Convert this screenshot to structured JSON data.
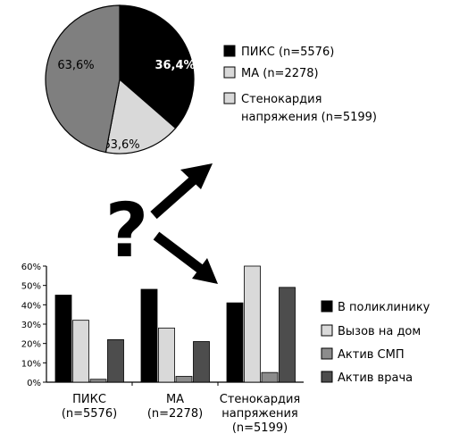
{
  "chart_data": [
    {
      "type": "pie",
      "slices": [
        {
          "label": "36,4%",
          "value": 36.4,
          "color": "#000000",
          "label_color": "#ffffff"
        },
        {
          "label": "63,6%",
          "value": 16.6,
          "color": "#d9d9d9",
          "label_color": "#000000"
        },
        {
          "label": "63,6%",
          "value": 47.0,
          "color": "#7f7f7f",
          "label_color": "#000000"
        }
      ],
      "legend": [
        {
          "label": "ПИКС (n=5576)",
          "color": "#000000"
        },
        {
          "label": "МА (n=2278)",
          "color": "#d9d9d9"
        },
        {
          "label_lines": [
            "Стенокардия",
            "напряжения (n=5199)"
          ],
          "color": "#d9d9d9"
        }
      ],
      "legend_position": "right"
    },
    {
      "type": "bar",
      "categories": [
        {
          "lines": [
            "ПИКС",
            "(n=5576)"
          ]
        },
        {
          "lines": [
            "МА",
            "(n=2278)"
          ]
        },
        {
          "lines": [
            "Стенокардия",
            "напряжения",
            "(n=5199)"
          ]
        }
      ],
      "series": [
        {
          "name": "В поликлинику",
          "color": "#000000",
          "values": [
            45,
            48,
            41
          ]
        },
        {
          "name": "Вызов на дом",
          "color": "#d9d9d9",
          "values": [
            32,
            28,
            60
          ]
        },
        {
          "name": "Актив СМП",
          "color": "#8c8c8c",
          "values": [
            1.5,
            3,
            5
          ]
        },
        {
          "name": "Актив врача",
          "color": "#4d4d4d",
          "values": [
            22,
            21,
            49
          ]
        }
      ],
      "ylim": [
        0,
        60
      ],
      "yticks": [
        "0%",
        "10%",
        "20%",
        "30%",
        "40%",
        "50%",
        "60%"
      ],
      "legend_position": "right"
    }
  ],
  "connector": {
    "symbol": "?"
  }
}
